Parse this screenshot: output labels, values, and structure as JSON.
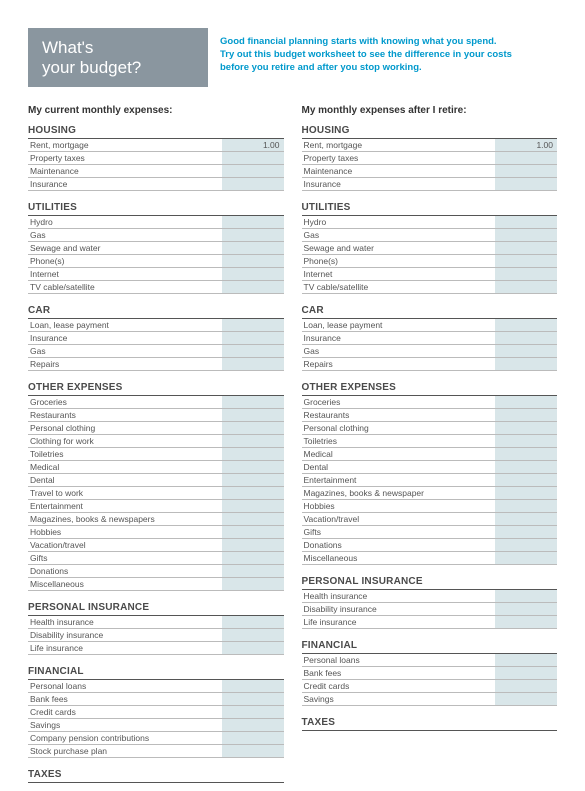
{
  "colors": {
    "header_bg": "#8a969f",
    "header_text": "#ffffff",
    "accent_text": "#0099cc",
    "row_border": "#bbbbbb",
    "value_bg": "#d9e6e9",
    "section_border": "#555555",
    "body_text": "#333333"
  },
  "header": {
    "title_line1": "What's",
    "title_line2": "your budget?",
    "intro_line1": "Good financial planning starts with knowing what you spend.",
    "intro_line2": "Try out this budget worksheet to see the difference in your costs",
    "intro_line3": "before you retire and after you stop working."
  },
  "left": {
    "title": "My current monthly expenses:",
    "sections": [
      {
        "name": "HOUSING",
        "rows": [
          {
            "label": "Rent, mortgage",
            "value": "1.00"
          },
          {
            "label": "Property taxes",
            "value": ""
          },
          {
            "label": "Maintenance",
            "value": ""
          },
          {
            "label": "Insurance",
            "value": ""
          }
        ]
      },
      {
        "name": "UTILITIES",
        "rows": [
          {
            "label": "Hydro",
            "value": ""
          },
          {
            "label": "Gas",
            "value": ""
          },
          {
            "label": "Sewage and water",
            "value": ""
          },
          {
            "label": "Phone(s)",
            "value": ""
          },
          {
            "label": "Internet",
            "value": ""
          },
          {
            "label": "TV cable/satellite",
            "value": ""
          }
        ]
      },
      {
        "name": "CAR",
        "rows": [
          {
            "label": "Loan, lease payment",
            "value": ""
          },
          {
            "label": "Insurance",
            "value": ""
          },
          {
            "label": "Gas",
            "value": ""
          },
          {
            "label": "Repairs",
            "value": ""
          }
        ]
      },
      {
        "name": "OTHER EXPENSES",
        "rows": [
          {
            "label": "Groceries",
            "value": ""
          },
          {
            "label": "Restaurants",
            "value": ""
          },
          {
            "label": "Personal clothing",
            "value": ""
          },
          {
            "label": "Clothing for work",
            "value": ""
          },
          {
            "label": "Toiletries",
            "value": ""
          },
          {
            "label": "Medical",
            "value": ""
          },
          {
            "label": "Dental",
            "value": ""
          },
          {
            "label": "Travel to work",
            "value": ""
          },
          {
            "label": "Entertainment",
            "value": ""
          },
          {
            "label": "Magazines, books & newspapers",
            "value": ""
          },
          {
            "label": "Hobbies",
            "value": ""
          },
          {
            "label": "Vacation/travel",
            "value": ""
          },
          {
            "label": "Gifts",
            "value": ""
          },
          {
            "label": "Donations",
            "value": ""
          },
          {
            "label": "Miscellaneous",
            "value": ""
          }
        ]
      },
      {
        "name": "PERSONAL INSURANCE",
        "rows": [
          {
            "label": "Health insurance",
            "value": ""
          },
          {
            "label": "Disability insurance",
            "value": ""
          },
          {
            "label": "Life insurance",
            "value": ""
          }
        ]
      },
      {
        "name": "FINANCIAL",
        "rows": [
          {
            "label": "Personal loans",
            "value": ""
          },
          {
            "label": "Bank fees",
            "value": ""
          },
          {
            "label": "Credit cards",
            "value": ""
          },
          {
            "label": "Savings",
            "value": ""
          },
          {
            "label": "Company pension contributions",
            "value": ""
          },
          {
            "label": "Stock purchase plan",
            "value": ""
          }
        ]
      },
      {
        "name": "TAXES",
        "rows": []
      }
    ]
  },
  "right": {
    "title": "My monthly expenses after I retire:",
    "sections": [
      {
        "name": "HOUSING",
        "rows": [
          {
            "label": "Rent, mortgage",
            "value": "1.00"
          },
          {
            "label": "Property taxes",
            "value": ""
          },
          {
            "label": "Maintenance",
            "value": ""
          },
          {
            "label": "Insurance",
            "value": ""
          }
        ]
      },
      {
        "name": "UTILITIES",
        "rows": [
          {
            "label": "Hydro",
            "value": ""
          },
          {
            "label": "Gas",
            "value": ""
          },
          {
            "label": "Sewage and water",
            "value": ""
          },
          {
            "label": "Phone(s)",
            "value": ""
          },
          {
            "label": "Internet",
            "value": ""
          },
          {
            "label": "TV cable/satellite",
            "value": ""
          }
        ]
      },
      {
        "name": "CAR",
        "rows": [
          {
            "label": "Loan, lease payment",
            "value": ""
          },
          {
            "label": "Insurance",
            "value": ""
          },
          {
            "label": "Gas",
            "value": ""
          },
          {
            "label": "Repairs",
            "value": ""
          }
        ]
      },
      {
        "name": "OTHER EXPENSES",
        "rows": [
          {
            "label": "Groceries",
            "value": ""
          },
          {
            "label": "Restaurants",
            "value": ""
          },
          {
            "label": "Personal clothing",
            "value": ""
          },
          {
            "label": "Toiletries",
            "value": ""
          },
          {
            "label": "Medical",
            "value": ""
          },
          {
            "label": "Dental",
            "value": ""
          },
          {
            "label": "Entertainment",
            "value": ""
          },
          {
            "label": "Magazines, books & newspaper",
            "value": ""
          },
          {
            "label": "Hobbies",
            "value": ""
          },
          {
            "label": "Vacation/travel",
            "value": ""
          },
          {
            "label": "Gifts",
            "value": ""
          },
          {
            "label": "Donations",
            "value": ""
          },
          {
            "label": "Miscellaneous",
            "value": ""
          }
        ]
      },
      {
        "name": "PERSONAL INSURANCE",
        "rows": [
          {
            "label": "Health insurance",
            "value": ""
          },
          {
            "label": "Disability insurance",
            "value": ""
          },
          {
            "label": "Life insurance",
            "value": ""
          }
        ]
      },
      {
        "name": "FINANCIAL",
        "rows": [
          {
            "label": "Personal loans",
            "value": ""
          },
          {
            "label": "Bank fees",
            "value": ""
          },
          {
            "label": "Credit cards",
            "value": ""
          },
          {
            "label": "Savings",
            "value": ""
          }
        ]
      },
      {
        "name": "TAXES",
        "rows": []
      }
    ]
  }
}
